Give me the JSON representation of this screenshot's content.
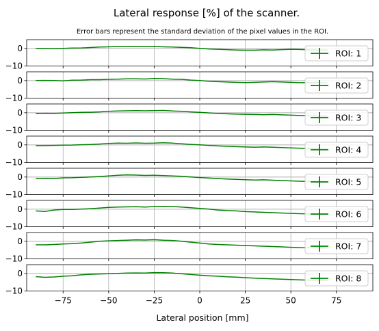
{
  "chart_data": {
    "type": "line",
    "title": "Lateral response [%] of the scanner.",
    "subtitle": "Error bars represent the standard deviation of the pixel values in the ROI.",
    "xlabel": "Lateral position [mm]",
    "xlim": [
      -95,
      95
    ],
    "ylim": [
      -10,
      5
    ],
    "x_ticks": [
      -75,
      -50,
      -25,
      0,
      25,
      50,
      75
    ],
    "x_tick_labels": [
      "−75",
      "−50",
      "−25",
      "0",
      "25",
      "50",
      "75"
    ],
    "y_ticks": [
      0,
      -10
    ],
    "y_tick_labels": [
      "0",
      "−10"
    ],
    "grid": true,
    "legend_position": "right",
    "line_color": "#008000",
    "zero_line_color": "#b0b0b0",
    "x": [
      -90,
      -85,
      -80,
      -75,
      -70,
      -65,
      -60,
      -55,
      -50,
      -45,
      -40,
      -35,
      -30,
      -25,
      -20,
      -15,
      -10,
      -5,
      0,
      5,
      10,
      15,
      20,
      25,
      30,
      35,
      40,
      45,
      50,
      55,
      60,
      65,
      70
    ],
    "panels": [
      {
        "legend": "ROI: 1",
        "values": [
          0,
          0,
          -0.2,
          0,
          0.2,
          0.3,
          0.5,
          0.8,
          0.9,
          1.1,
          1.2,
          1.2,
          1.0,
          1.1,
          0.9,
          0.8,
          0.6,
          0.4,
          0,
          -0.3,
          -0.5,
          -0.7,
          -0.9,
          -1.0,
          -1.0,
          -0.8,
          -0.9,
          -0.7,
          -0.5,
          -0.6,
          -0.8,
          -0.9,
          -1.0
        ]
      },
      {
        "legend": "ROI: 2",
        "values": [
          0,
          0.1,
          0,
          -0.2,
          0.2,
          0.3,
          0.5,
          0.5,
          0.7,
          0.8,
          1.0,
          1.0,
          0.9,
          1.2,
          1.1,
          0.8,
          0.7,
          0.3,
          0,
          -0.4,
          -0.6,
          -0.8,
          -1.0,
          -1.1,
          -1.0,
          -0.8,
          -0.6,
          -0.8,
          -1.0,
          -1.2,
          -1.1,
          -1.2,
          -1.3
        ]
      },
      {
        "legend": "ROI: 3",
        "values": [
          -0.5,
          -0.3,
          -0.4,
          -0.2,
          0,
          0.2,
          0.3,
          0.5,
          0.8,
          1.0,
          1.1,
          1.2,
          1.1,
          1.2,
          1.3,
          1.0,
          0.8,
          0.5,
          0.2,
          -0.1,
          -0.4,
          -0.6,
          -0.8,
          -0.9,
          -1.0,
          -1.1,
          -1.0,
          -1.2,
          -1.4,
          -1.6,
          -1.8,
          -1.9,
          -2.0
        ]
      },
      {
        "legend": "ROI: 4",
        "values": [
          -0.5,
          -0.4,
          -0.3,
          -0.2,
          -0.1,
          0.1,
          0.2,
          0.5,
          0.8,
          1.0,
          0.9,
          1.1,
          0.9,
          1.0,
          1.2,
          1.0,
          0.6,
          0.3,
          0,
          -0.3,
          -0.6,
          -0.8,
          -1.0,
          -1.2,
          -1.3,
          -1.2,
          -1.3,
          -1.5,
          -1.7,
          -1.9,
          -2.1,
          -2.2,
          -2.3
        ]
      },
      {
        "legend": "ROI: 5",
        "values": [
          -1.0,
          -0.8,
          -0.9,
          -0.5,
          -0.4,
          -0.2,
          0,
          0.3,
          0.6,
          1.0,
          1.2,
          1.1,
          0.9,
          1.0,
          0.8,
          0.6,
          0.4,
          0,
          -0.3,
          -0.6,
          -0.9,
          -1.1,
          -1.3,
          -1.5,
          -1.7,
          -1.6,
          -1.8,
          -2.0,
          -2.2,
          -2.4,
          -2.5,
          -2.6,
          -2.6
        ]
      },
      {
        "legend": "ROI: 6",
        "values": [
          -1.0,
          -1.3,
          -0.5,
          -0.2,
          -0.2,
          0,
          0.3,
          0.6,
          1.0,
          1.2,
          1.3,
          1.4,
          1.2,
          1.5,
          1.6,
          1.5,
          1.2,
          0.8,
          0.4,
          0,
          -0.5,
          -0.8,
          -1.0,
          -1.4,
          -1.6,
          -1.8,
          -2.0,
          -2.2,
          -2.4,
          -2.6,
          -2.7,
          -2.8,
          -2.8
        ]
      },
      {
        "legend": "ROI: 7",
        "values": [
          -2.0,
          -2.0,
          -1.8,
          -1.5,
          -1.3,
          -1.0,
          -0.5,
          0,
          0.3,
          0.5,
          0.6,
          0.8,
          0.7,
          0.9,
          0.6,
          0.5,
          0,
          -0.5,
          -1.0,
          -1.5,
          -1.8,
          -2.0,
          -2.2,
          -2.4,
          -2.6,
          -2.8,
          -3.0,
          -3.2,
          -3.4,
          -3.6,
          -3.7,
          -3.8,
          -3.8
        ]
      },
      {
        "legend": "ROI: 8",
        "values": [
          -1.8,
          -2.2,
          -2.0,
          -1.6,
          -1.3,
          -0.8,
          -0.5,
          -0.3,
          -0.2,
          0,
          0.2,
          0.3,
          0.2,
          0.5,
          0.4,
          0.2,
          -0.2,
          -0.6,
          -1.0,
          -1.3,
          -1.6,
          -1.9,
          -2.1,
          -2.4,
          -2.7,
          -2.9,
          -3.1,
          -3.3,
          -3.5,
          -3.7,
          -3.8,
          -3.9,
          -4.0
        ]
      }
    ]
  }
}
